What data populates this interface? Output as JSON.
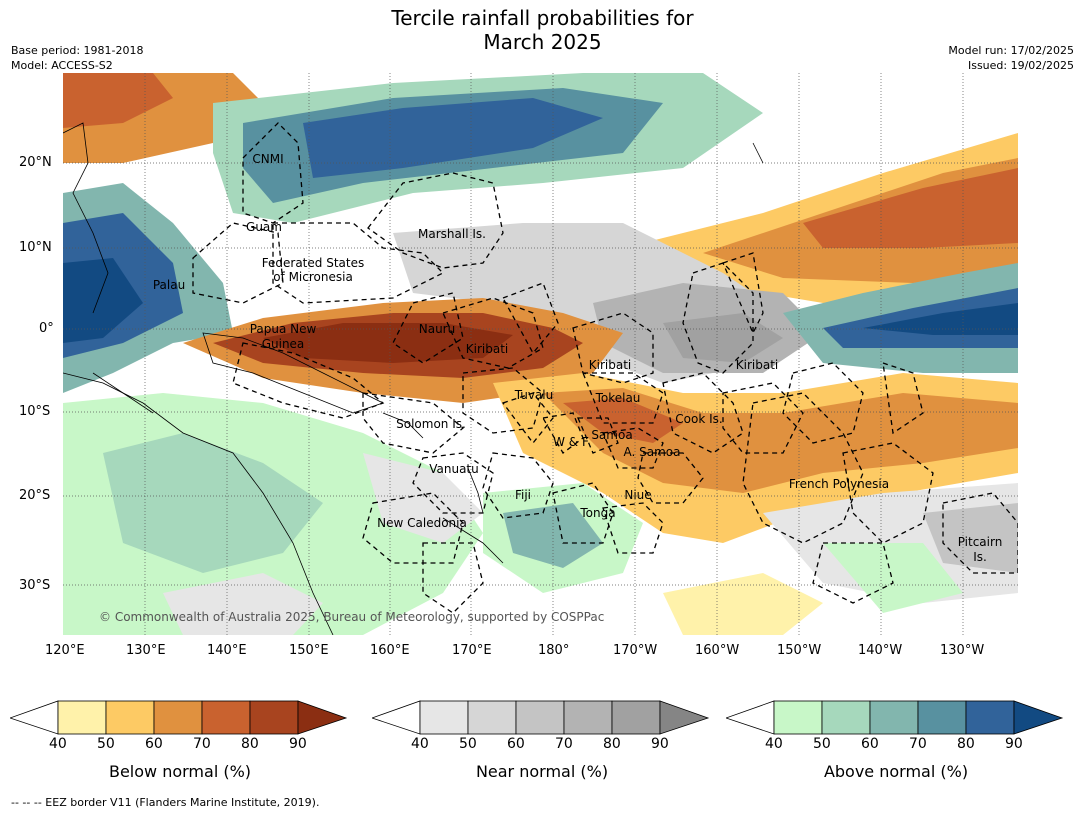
{
  "title_line1": "Tercile rainfall probabilities for",
  "title_line2": "March 2025",
  "meta": {
    "base_period": "Base period: 1981-2018",
    "model": "Model: ACCESS-S2",
    "model_run": "Model run: 17/02/2025",
    "issued": "Issued: 19/02/2025"
  },
  "axes": {
    "lon_labels": [
      "120°E",
      "130°E",
      "140°E",
      "150°E",
      "160°E",
      "170°E",
      "180°",
      "170°W",
      "160°W",
      "150°W",
      "140°W",
      "130°W"
    ],
    "lat_labels": [
      "20°N",
      "10°N",
      "0°",
      "10°S",
      "20°S",
      "30°S"
    ]
  },
  "regions": [
    {
      "name": "CNMI"
    },
    {
      "name": "Guam"
    },
    {
      "name": "Marshall Is."
    },
    {
      "name": "Federated States"
    },
    {
      "name": "of Micronesia"
    },
    {
      "name": "Palau"
    },
    {
      "name": "Papua New"
    },
    {
      "name": "Guinea"
    },
    {
      "name": "Nauru"
    },
    {
      "name": "Kiribati"
    },
    {
      "name": "Kiribati"
    },
    {
      "name": "Kiribati"
    },
    {
      "name": "Tuvalu"
    },
    {
      "name": "Tokelau"
    },
    {
      "name": "Solomon Is."
    },
    {
      "name": "W & F"
    },
    {
      "name": "Samoa"
    },
    {
      "name": "A. Samoa"
    },
    {
      "name": "Cook Is."
    },
    {
      "name": "Vanuatu"
    },
    {
      "name": "Fiji"
    },
    {
      "name": "Niue"
    },
    {
      "name": "French Polynesia"
    },
    {
      "name": "Tonga"
    },
    {
      "name": "New Caledonia"
    },
    {
      "name": "Pitcairn"
    },
    {
      "name": "Is."
    }
  ],
  "copyright": "© Commonwealth of Australia 2025, Bureau of Meteorology, supported by COSPPac",
  "colorbars": [
    {
      "label": "Below normal (%)",
      "ticks": [
        "40",
        "50",
        "60",
        "70",
        "80",
        "90"
      ],
      "colors": [
        "#fff2aa",
        "#fdca64",
        "#e0913f",
        "#c9622f",
        "#a8441f",
        "#8b2e12"
      ]
    },
    {
      "label": "Near normal (%)",
      "ticks": [
        "40",
        "50",
        "60",
        "70",
        "80",
        "90"
      ],
      "colors": [
        "#e6e6e6",
        "#d6d6d6",
        "#c4c4c4",
        "#b3b3b3",
        "#a1a1a1",
        "#858585"
      ]
    },
    {
      "label": "Above normal (%)",
      "ticks": [
        "40",
        "50",
        "60",
        "70",
        "80",
        "90"
      ],
      "colors": [
        "#c8f7c8",
        "#a6d8bc",
        "#82b6ae",
        "#5891a0",
        "#31639a",
        "#124a82"
      ]
    }
  ],
  "footnote": "--  --  -- EEZ border V11 (Flanders Marine Institute, 2019)."
}
